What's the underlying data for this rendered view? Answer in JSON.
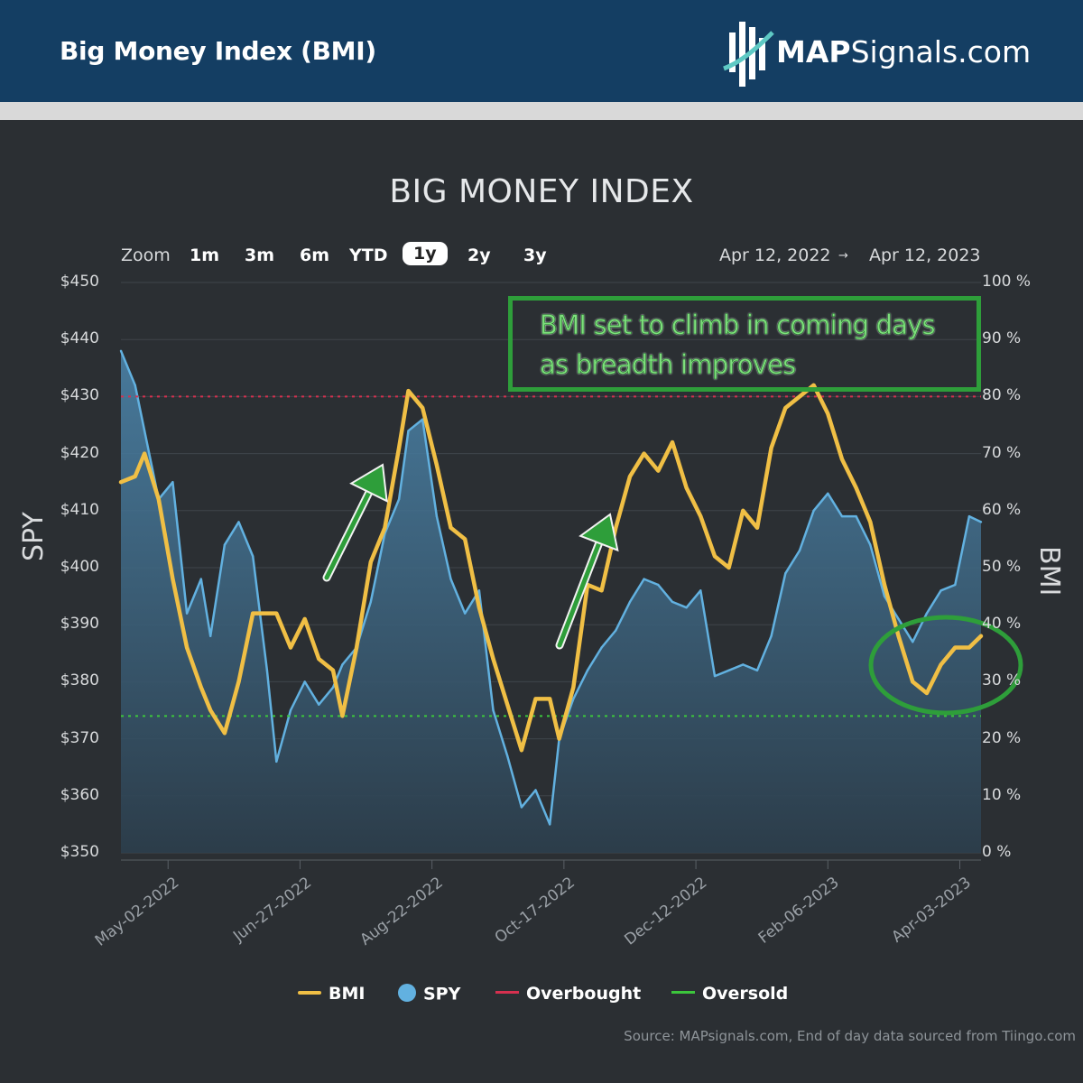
{
  "header": {
    "title": "Big Money Index (BMI)",
    "brand_bold": "MAP",
    "brand_rest": "Signals.com"
  },
  "toolbar": {
    "zoom_label": "Zoom",
    "zoom_options": [
      "1m",
      "3m",
      "6m",
      "YTD",
      "1y",
      "2y",
      "3y"
    ],
    "zoom_selected": "1y",
    "range_from": "Apr 12, 2022",
    "range_arrow": "→",
    "range_to": "Apr 12, 2023"
  },
  "annotation": {
    "line1": "BMI set to climb in coming days",
    "line2": "as breadth improves"
  },
  "legend": {
    "bmi": "BMI",
    "spy": "SPY",
    "overbought": "Overbought",
    "oversold": "Oversold"
  },
  "source": "Source: MAPsignals.com, End of day data sourced from Tiingo.com",
  "colors": {
    "bmi": "#f0bf45",
    "spy": "#62b1e0",
    "overbought": "#d6304f",
    "oversold": "#3cc63c",
    "annotation": "#2e9e3a",
    "header": "#143e63"
  },
  "chart_data": {
    "type": "line",
    "title": "BIG MONEY INDEX",
    "ylabel_left": "SPY",
    "ylabel_right": "BMI",
    "ylim_left": [
      350,
      450
    ],
    "ylim_right": [
      0,
      100
    ],
    "yticks_left": [
      "$450",
      "$440",
      "$430",
      "$420",
      "$410",
      "$400",
      "$390",
      "$380",
      "$370",
      "$360",
      "$350"
    ],
    "yticks_right": [
      "100 %",
      "90 %",
      "80 %",
      "70 %",
      "60 %",
      "50 %",
      "40 %",
      "30 %",
      "20 %",
      "10 %",
      "0 %"
    ],
    "xticks": [
      "May-02-2022",
      "Jun-27-2022",
      "Aug-22-2022",
      "Oct-17-2022",
      "Dec-12-2022",
      "Feb-06-2023",
      "Apr-03-2023"
    ],
    "x_range": [
      "2022-04-12",
      "2023-04-12"
    ],
    "overbought": 80,
    "oversold": 24,
    "legend_position": "bottom",
    "series": [
      {
        "name": "BMI",
        "axis": "right",
        "x": [
          "2022-04-12",
          "2022-04-18",
          "2022-04-22",
          "2022-04-28",
          "2022-05-04",
          "2022-05-10",
          "2022-05-16",
          "2022-05-20",
          "2022-05-26",
          "2022-06-01",
          "2022-06-07",
          "2022-06-13",
          "2022-06-17",
          "2022-06-23",
          "2022-06-29",
          "2022-07-05",
          "2022-07-11",
          "2022-07-15",
          "2022-07-21",
          "2022-07-27",
          "2022-08-02",
          "2022-08-08",
          "2022-08-12",
          "2022-08-18",
          "2022-08-24",
          "2022-08-30",
          "2022-09-05",
          "2022-09-11",
          "2022-09-17",
          "2022-09-23",
          "2022-09-29",
          "2022-10-05",
          "2022-10-11",
          "2022-10-15",
          "2022-10-21",
          "2022-10-27",
          "2022-11-02",
          "2022-11-08",
          "2022-11-14",
          "2022-11-20",
          "2022-11-26",
          "2022-12-02",
          "2022-12-08",
          "2022-12-14",
          "2022-12-20",
          "2022-12-26",
          "2023-01-01",
          "2023-01-07",
          "2023-01-13",
          "2023-01-19",
          "2023-01-25",
          "2023-01-31",
          "2023-02-06",
          "2023-02-12",
          "2023-02-18",
          "2023-02-24",
          "2023-03-02",
          "2023-03-08",
          "2023-03-14",
          "2023-03-20",
          "2023-03-26",
          "2023-04-01",
          "2023-04-07",
          "2023-04-12"
        ],
        "values": [
          65,
          66,
          70,
          62,
          48,
          36,
          29,
          25,
          21,
          30,
          42,
          42,
          42,
          36,
          41,
          34,
          32,
          24,
          36,
          51,
          57,
          71,
          81,
          78,
          68,
          57,
          55,
          43,
          34,
          26,
          18,
          27,
          27,
          20,
          29,
          47,
          46,
          57,
          66,
          70,
          67,
          72,
          64,
          59,
          52,
          50,
          60,
          57,
          71,
          78,
          80,
          82,
          77,
          69,
          64,
          58,
          47,
          38,
          30,
          28,
          33,
          36,
          36,
          38
        ]
      },
      {
        "name": "SPY",
        "axis": "left",
        "x": [
          "2022-04-12",
          "2022-04-18",
          "2022-04-22",
          "2022-04-28",
          "2022-05-04",
          "2022-05-10",
          "2022-05-16",
          "2022-05-20",
          "2022-05-26",
          "2022-06-01",
          "2022-06-07",
          "2022-06-13",
          "2022-06-17",
          "2022-06-23",
          "2022-06-29",
          "2022-07-05",
          "2022-07-11",
          "2022-07-15",
          "2022-07-21",
          "2022-07-27",
          "2022-08-02",
          "2022-08-08",
          "2022-08-12",
          "2022-08-18",
          "2022-08-24",
          "2022-08-30",
          "2022-09-05",
          "2022-09-11",
          "2022-09-17",
          "2022-09-23",
          "2022-09-29",
          "2022-10-05",
          "2022-10-11",
          "2022-10-15",
          "2022-10-21",
          "2022-10-27",
          "2022-11-02",
          "2022-11-08",
          "2022-11-14",
          "2022-11-20",
          "2022-11-26",
          "2022-12-02",
          "2022-12-08",
          "2022-12-14",
          "2022-12-20",
          "2022-12-26",
          "2023-01-01",
          "2023-01-07",
          "2023-01-13",
          "2023-01-19",
          "2023-01-25",
          "2023-01-31",
          "2023-02-06",
          "2023-02-12",
          "2023-02-18",
          "2023-02-24",
          "2023-03-02",
          "2023-03-08",
          "2023-03-14",
          "2023-03-20",
          "2023-03-26",
          "2023-04-01",
          "2023-04-07",
          "2023-04-12"
        ],
        "values": [
          438,
          432,
          424,
          412,
          415,
          392,
          398,
          388,
          404,
          408,
          402,
          382,
          366,
          375,
          380,
          376,
          379,
          383,
          386,
          394,
          406,
          412,
          424,
          426,
          409,
          398,
          392,
          396,
          375,
          367,
          358,
          361,
          355,
          370,
          377,
          382,
          386,
          389,
          394,
          398,
          397,
          394,
          393,
          396,
          381,
          382,
          383,
          382,
          388,
          399,
          403,
          410,
          413,
          409,
          409,
          404,
          395,
          391,
          387,
          392,
          396,
          397,
          409,
          408
        ]
      }
    ]
  }
}
